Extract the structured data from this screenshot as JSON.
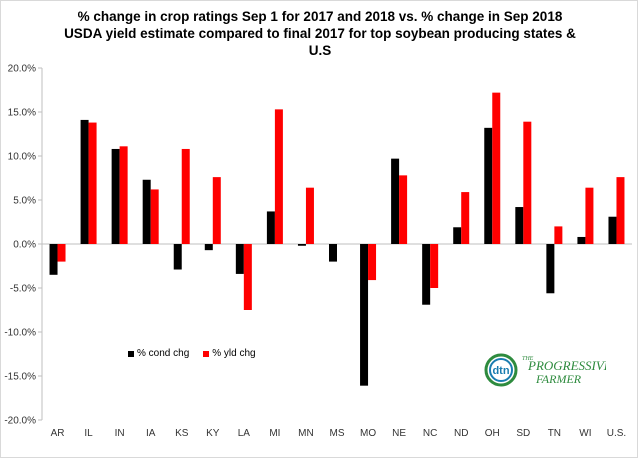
{
  "chart_data": {
    "type": "bar",
    "title_lines": [
      "%  change in crop ratings Sep 1 for 2017 and 2018 vs.  % change in Sep 2018",
      "USDA yield estimate compared to final 2017 for top soybean producing states &",
      "U.S"
    ],
    "categories": [
      "AR",
      "IL",
      "IN",
      "IA",
      "KS",
      "KY",
      "LA",
      "MI",
      "MN",
      "MS",
      "MO",
      "NE",
      "NC",
      "ND",
      "OH",
      "SD",
      "TN",
      "WI",
      "U.S."
    ],
    "series": [
      {
        "name": "% cond chg",
        "color": "#000000",
        "values": [
          -3.5,
          14.1,
          10.8,
          7.3,
          -2.9,
          -0.7,
          -3.4,
          3.7,
          -0.2,
          -2.0,
          -16.1,
          9.7,
          -6.9,
          1.9,
          13.2,
          4.2,
          -5.6,
          0.8,
          3.1
        ]
      },
      {
        "name": "% yld chg",
        "color": "#ff0000",
        "values": [
          -2.0,
          13.8,
          11.1,
          6.2,
          10.8,
          7.6,
          -7.5,
          15.3,
          6.4,
          0.0,
          -4.1,
          7.8,
          -5.0,
          5.9,
          17.2,
          13.9,
          2.0,
          6.4,
          7.6
        ]
      }
    ],
    "ylim": [
      -20,
      20
    ],
    "yticks": [
      "-20.0%",
      "-15.0%",
      "-10.0%",
      "-5.0%",
      "0.0%",
      "5.0%",
      "10.0%",
      "15.0%",
      "20.0%"
    ],
    "ytick_values": [
      -20,
      -15,
      -10,
      -5,
      0,
      5,
      10,
      15,
      20
    ],
    "grid": false,
    "legend_position": "bottom-left"
  },
  "logo": {
    "brand": "dtn",
    "line1": "THE",
    "line2": "PROGRESSIVE",
    "line3": "FARMER"
  }
}
